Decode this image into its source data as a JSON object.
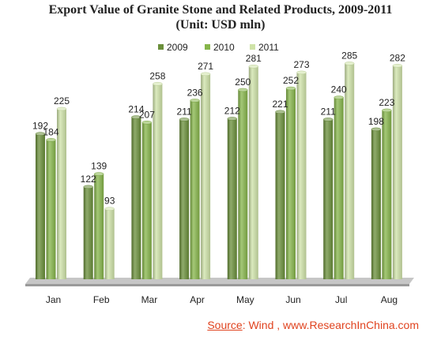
{
  "chart_data": {
    "type": "bar",
    "title": "Export Value of Granite Stone and Related Products, 2009-2011",
    "subtitle": "(Unit: USD mln)",
    "categories": [
      "Jan",
      "Feb",
      "Mar",
      "Apr",
      "May",
      "Jun",
      "Jul",
      "Aug"
    ],
    "series": [
      {
        "name": "2009",
        "values": [
          192,
          122,
          214,
          211,
          212,
          221,
          211,
          198
        ],
        "color": "#6a8f3a"
      },
      {
        "name": "2010",
        "values": [
          184,
          139,
          207,
          236,
          250,
          252,
          240,
          223
        ],
        "color": "#86b54a"
      },
      {
        "name": "2011",
        "values": [
          225,
          93,
          258,
          271,
          281,
          273,
          285,
          282
        ],
        "color": "#cfe3a8"
      }
    ],
    "ylim": [
      0,
      300
    ],
    "grid": false,
    "legend_position": "top-center",
    "xlabel": "",
    "ylabel": ""
  },
  "source": {
    "label": "Source",
    "text": ": Wind ,  www.ResearchInChina.com"
  }
}
